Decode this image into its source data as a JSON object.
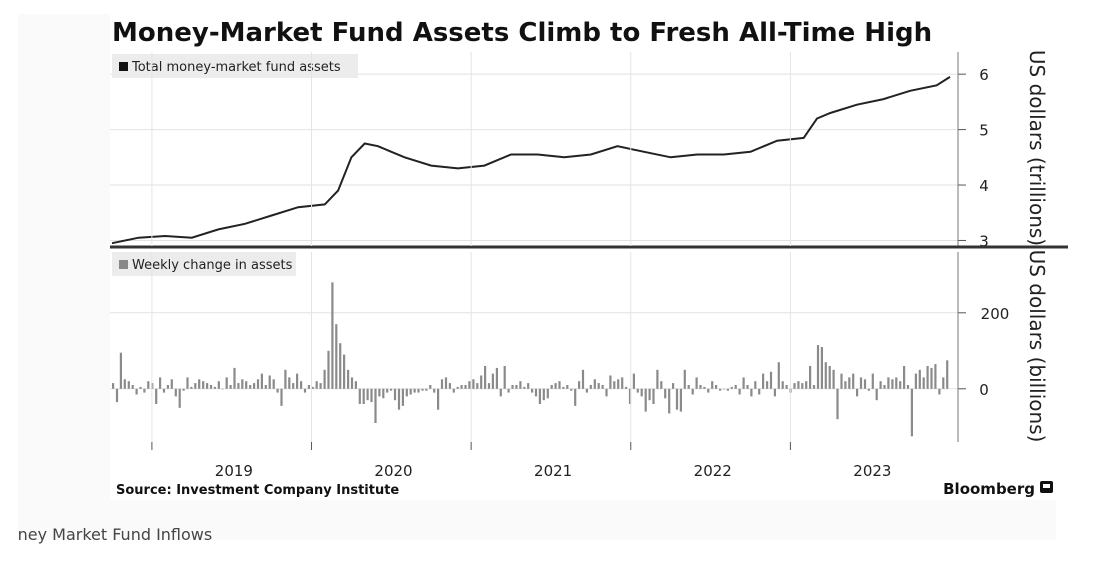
{
  "chart_data": [
    {
      "type": "line",
      "title": "Money-Market Fund Assets Climb to Fresh All-Time High",
      "legend": "Total money-market fund assets",
      "legend_placement": "top-left",
      "ylabel": "US dollars (trillions)",
      "ylim": [
        2.9,
        6.4
      ],
      "yticks": [
        "3",
        "4",
        "5",
        "6"
      ],
      "series": [
        {
          "x": [
            "2018-10",
            "2018-12",
            "2019-02",
            "2019-04",
            "2019-06",
            "2019-08",
            "2019-10",
            "2019-12",
            "2020-02",
            "2020-03",
            "2020-04",
            "2020-05",
            "2020-06",
            "2020-07",
            "2020-08",
            "2020-10",
            "2020-12",
            "2021-02",
            "2021-04",
            "2021-06",
            "2021-08",
            "2021-10",
            "2021-12",
            "2022-02",
            "2022-04",
            "2022-06",
            "2022-08",
            "2022-10",
            "2022-12",
            "2023-02",
            "2023-03",
            "2023-04",
            "2023-06",
            "2023-08",
            "2023-10",
            "2023-12",
            "2024-01"
          ],
          "values": [
            2.95,
            3.05,
            3.08,
            3.05,
            3.2,
            3.3,
            3.45,
            3.6,
            3.65,
            3.9,
            4.5,
            4.75,
            4.7,
            4.6,
            4.5,
            4.35,
            4.3,
            4.35,
            4.55,
            4.55,
            4.5,
            4.55,
            4.7,
            4.6,
            4.5,
            4.55,
            4.55,
            4.6,
            4.8,
            4.85,
            5.2,
            5.3,
            5.45,
            5.55,
            5.7,
            5.8,
            5.95
          ]
        }
      ]
    },
    {
      "type": "bar",
      "legend": "Weekly change in assets",
      "legend_placement": "top-left",
      "ylabel": "US dollars (billions)",
      "ylim": [
        -140,
        360
      ],
      "yticks": [
        "0",
        "200"
      ],
      "x_start": "2018-10",
      "x_end": "2024-01",
      "values": [
        15,
        -35,
        95,
        25,
        20,
        10,
        -15,
        5,
        -10,
        20,
        15,
        -40,
        30,
        -10,
        10,
        25,
        -20,
        -50,
        -5,
        30,
        5,
        15,
        25,
        20,
        15,
        10,
        5,
        20,
        0,
        30,
        10,
        55,
        15,
        25,
        20,
        10,
        15,
        25,
        40,
        10,
        35,
        25,
        -10,
        -45,
        50,
        30,
        15,
        40,
        20,
        -10,
        10,
        5,
        20,
        15,
        50,
        100,
        280,
        170,
        120,
        90,
        50,
        30,
        20,
        -40,
        -40,
        -30,
        -35,
        -90,
        -20,
        -25,
        -10,
        -5,
        -30,
        -55,
        -45,
        -20,
        -15,
        -10,
        -10,
        -5,
        -5,
        10,
        -10,
        -55,
        25,
        30,
        15,
        -10,
        5,
        10,
        10,
        20,
        25,
        15,
        35,
        60,
        15,
        40,
        55,
        -20,
        60,
        -10,
        10,
        10,
        20,
        5,
        15,
        -10,
        -20,
        -40,
        -30,
        -25,
        10,
        15,
        20,
        5,
        10,
        -5,
        -45,
        20,
        50,
        -10,
        10,
        25,
        15,
        10,
        -20,
        35,
        20,
        25,
        30,
        5,
        -40,
        40,
        -10,
        -20,
        -60,
        -30,
        -40,
        50,
        20,
        -25,
        -65,
        15,
        -55,
        -60,
        50,
        10,
        -15,
        30,
        10,
        5,
        -10,
        20,
        10,
        -5,
        0,
        -5,
        5,
        10,
        -15,
        30,
        10,
        -20,
        20,
        -15,
        40,
        20,
        45,
        -20,
        70,
        20,
        10,
        -10,
        15,
        20,
        15,
        20,
        60,
        10,
        115,
        110,
        70,
        60,
        50,
        -80,
        40,
        20,
        30,
        40,
        -20,
        30,
        25,
        -5,
        40,
        -30,
        20,
        10,
        30,
        25,
        30,
        20,
        60,
        10,
        -125,
        40,
        50,
        30,
        60,
        55,
        65,
        -15,
        30,
        75
      ]
    }
  ],
  "x_axis": {
    "ticks": [
      "2019",
      "2020",
      "2021",
      "2022",
      "2023"
    ]
  },
  "source": "Source: Investment Company Institute",
  "brand": "Bloomberg",
  "caption": "Money Market Fund Inflows"
}
